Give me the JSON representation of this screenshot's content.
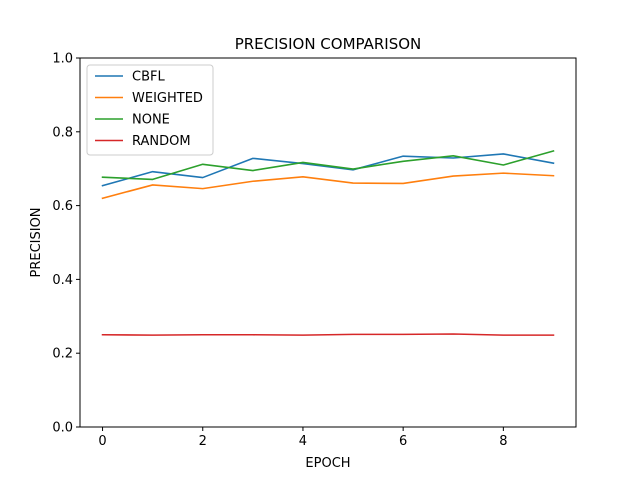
{
  "chart_data": {
    "type": "line",
    "title": "PRECISION COMPARISON",
    "xlabel": "EPOCH",
    "ylabel": "PRECISION",
    "x": [
      0,
      1,
      2,
      3,
      4,
      5,
      6,
      7,
      8,
      9
    ],
    "xlim": [
      -0.45,
      9.45
    ],
    "ylim": [
      0.0,
      1.0
    ],
    "xticks": [
      0,
      2,
      4,
      6,
      8
    ],
    "yticks": [
      0.0,
      0.2,
      0.4,
      0.6,
      0.8,
      1.0
    ],
    "ytick_labels": [
      "0.0",
      "0.2",
      "0.4",
      "0.6",
      "0.8",
      "1.0"
    ],
    "grid": false,
    "legend_position": "top-left",
    "series": [
      {
        "name": "CBFL",
        "color": "#1f77b4",
        "values": [
          0.654,
          0.692,
          0.676,
          0.728,
          0.714,
          0.697,
          0.734,
          0.729,
          0.74,
          0.715
        ]
      },
      {
        "name": "WEIGHTED",
        "color": "#ff7f0e",
        "values": [
          0.62,
          0.656,
          0.646,
          0.666,
          0.678,
          0.661,
          0.66,
          0.68,
          0.688,
          0.681
        ]
      },
      {
        "name": "NONE",
        "color": "#2ca02c",
        "values": [
          0.677,
          0.671,
          0.712,
          0.695,
          0.717,
          0.699,
          0.72,
          0.735,
          0.71,
          0.748
        ]
      },
      {
        "name": "RANDOM",
        "color": "#d62728",
        "values": [
          0.25,
          0.249,
          0.25,
          0.25,
          0.249,
          0.251,
          0.251,
          0.252,
          0.249,
          0.249
        ]
      }
    ]
  }
}
